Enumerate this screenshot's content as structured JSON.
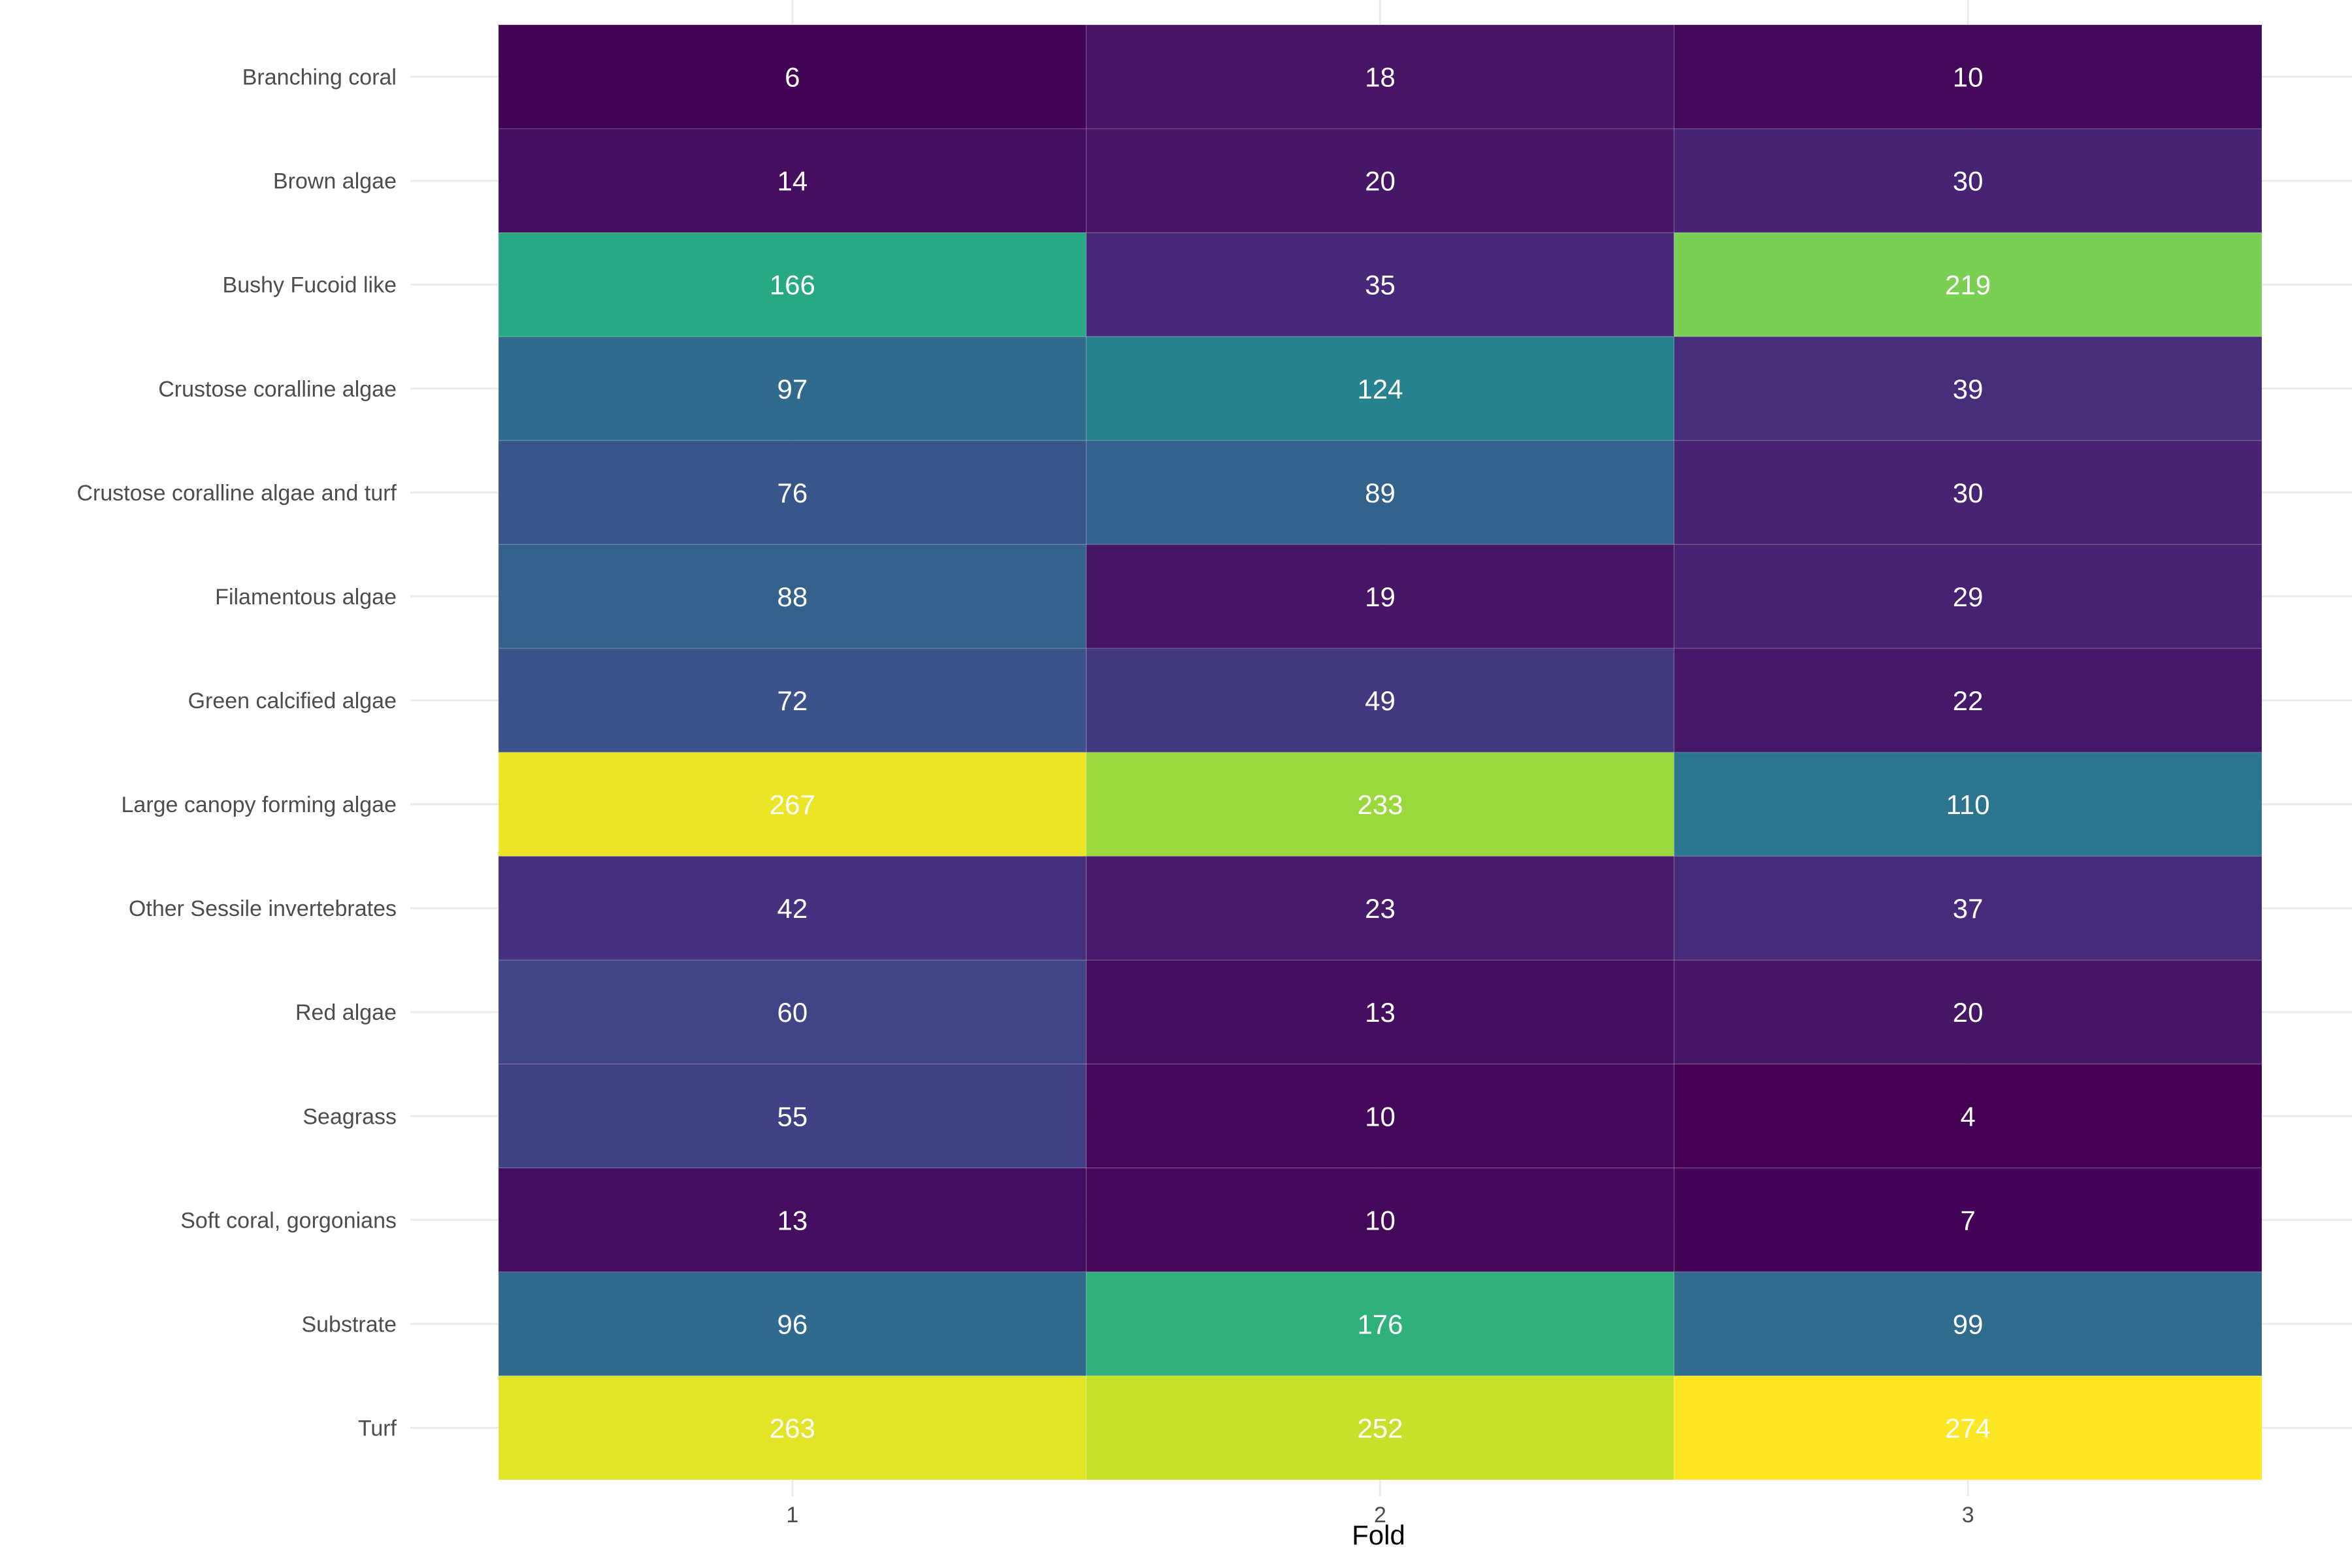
{
  "chart_data": {
    "type": "heatmap",
    "title": "",
    "xlabel": "Fold",
    "ylabel": "",
    "grid": true,
    "legend": "none",
    "colormap": "viridis",
    "x": [
      "1",
      "2",
      "3"
    ],
    "y": [
      "Branching coral",
      "Brown algae",
      "Bushy Fucoid like",
      "Crustose coralline algae",
      "Crustose coralline algae and turf",
      "Filamentous algae",
      "Green calcified algae",
      "Large canopy forming algae",
      "Other Sessile invertebrates",
      "Red algae",
      "Seagrass",
      "Soft coral, gorgonians",
      "Substrate",
      "Turf"
    ],
    "values": [
      [
        6,
        18,
        10
      ],
      [
        14,
        20,
        30
      ],
      [
        166,
        35,
        219
      ],
      [
        97,
        124,
        39
      ],
      [
        76,
        89,
        30
      ],
      [
        88,
        19,
        29
      ],
      [
        72,
        49,
        22
      ],
      [
        267,
        233,
        110
      ],
      [
        42,
        23,
        37
      ],
      [
        60,
        13,
        20
      ],
      [
        55,
        10,
        4
      ],
      [
        13,
        10,
        7
      ],
      [
        96,
        176,
        99
      ],
      [
        263,
        252,
        274
      ]
    ],
    "value_range": [
      4,
      274
    ],
    "label_color": "#ffffff"
  }
}
